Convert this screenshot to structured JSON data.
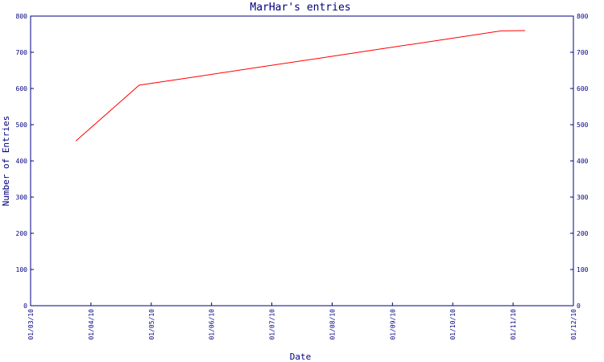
{
  "chart_data": {
    "type": "line",
    "title": "MarHar's entries",
    "xlabel": "Date",
    "ylabel": "Number of Entries",
    "ylim": [
      0,
      800
    ],
    "y_ticks": [
      0,
      100,
      200,
      300,
      400,
      500,
      600,
      700,
      800
    ],
    "x_ticks": [
      "01/03/10",
      "01/04/10",
      "01/05/10",
      "01/06/10",
      "01/07/10",
      "01/08/10",
      "01/09/10",
      "01/10/10",
      "01/11/10",
      "01/12/10"
    ],
    "grid": false,
    "series": [
      {
        "color": "#ff0000",
        "x": [
          "01/03/10",
          "01/04/10",
          "01/05/10",
          "01/06/10",
          "01/07/10",
          "01/08/10",
          "01/09/10",
          "01/10/10",
          "01/11/10"
        ],
        "x_offset_months": [
          0.75,
          1.8,
          2.8,
          3.8,
          4.8,
          5.8,
          6.8,
          7.8,
          8.2
        ],
        "values": [
          455,
          609,
          634,
          659,
          684,
          709,
          734,
          759,
          760
        ]
      }
    ]
  },
  "colors": {
    "axis": "#000080",
    "line": "#ff0000",
    "background": "#ffffff"
  }
}
